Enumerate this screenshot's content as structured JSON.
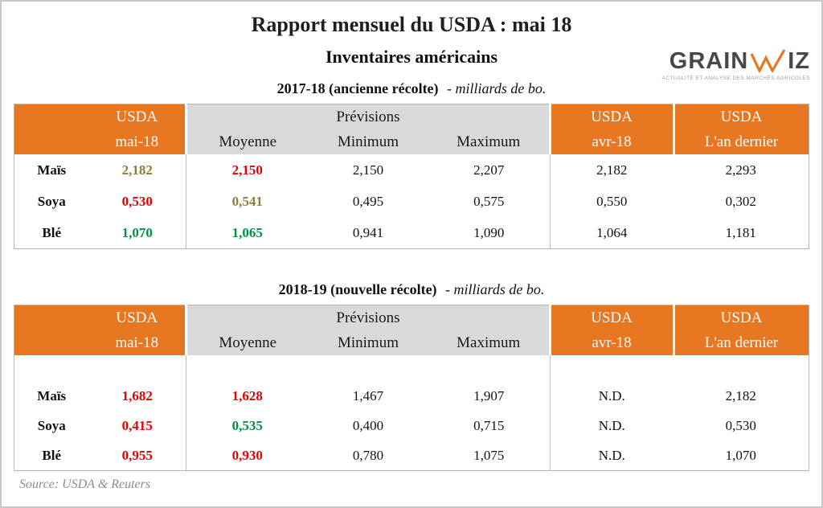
{
  "page": {
    "title": "Rapport mensuel du USDA : mai 18",
    "subtitle": "Inventaires américains",
    "source": "Source: USDA & Reuters"
  },
  "logo": {
    "wordmark_left": "GRAIN",
    "wordmark_right": "IZ",
    "w_icon": "orange-zigzag-w-icon",
    "tagline": "ACTUALITÉ ET ANALYSE DES MARCHÉS AGRICOLES",
    "accent": "#e87722"
  },
  "colors": {
    "header_orange": "#e87722",
    "header_gray": "#d9d9d9",
    "value_red": "#e60000",
    "value_green": "#009042",
    "value_olive": "#8b7d3a",
    "text": "#111111",
    "source_gray": "#8c8c8c"
  },
  "tables": [
    {
      "caption_bold": "2017-18 (ancienne récolte)",
      "caption_italic": "- milliards de bo.",
      "header": {
        "col1_top": "USDA",
        "col1_bottom": "mai-18",
        "group": "Prévisions",
        "moyenne": "Moyenne",
        "minimum": "Minimum",
        "maximum": "Maximum",
        "col5_top": "USDA",
        "col5_bottom": "avr-18",
        "col6_top": "USDA",
        "col6_bottom": "L'an dernier"
      },
      "spacer_row": false,
      "rows": [
        {
          "label": "Maïs",
          "values": [
            {
              "t": "2,182",
              "c": "#8b7d3a"
            },
            {
              "t": "2,150",
              "c": "#e60000"
            },
            {
              "t": "2,150"
            },
            {
              "t": "2,207"
            },
            {
              "t": "2,182"
            },
            {
              "t": "2,293"
            }
          ]
        },
        {
          "label": "Soya",
          "values": [
            {
              "t": "0,530",
              "c": "#e60000"
            },
            {
              "t": "0,541",
              "c": "#8b7d3a"
            },
            {
              "t": "0,495"
            },
            {
              "t": "0,575"
            },
            {
              "t": "0,550"
            },
            {
              "t": "0,302"
            }
          ]
        },
        {
          "label": "Blé",
          "values": [
            {
              "t": "1,070",
              "c": "#009042"
            },
            {
              "t": "1,065",
              "c": "#009042"
            },
            {
              "t": "0,941"
            },
            {
              "t": "1,090"
            },
            {
              "t": "1,064"
            },
            {
              "t": "1,181"
            }
          ]
        }
      ]
    },
    {
      "caption_bold": "2018-19 (nouvelle récolte)",
      "caption_italic": "- milliards de bo.",
      "header": {
        "col1_top": "USDA",
        "col1_bottom": "mai-18",
        "group": "Prévisions",
        "moyenne": "Moyenne",
        "minimum": "Minimum",
        "maximum": "Maximum",
        "col5_top": "USDA",
        "col5_bottom": "avr-18",
        "col6_top": "USDA",
        "col6_bottom": "L'an dernier"
      },
      "spacer_row": true,
      "rows": [
        {
          "label": "Maïs",
          "values": [
            {
              "t": "1,682",
              "c": "#e60000"
            },
            {
              "t": "1,628",
              "c": "#e60000"
            },
            {
              "t": "1,467"
            },
            {
              "t": "1,907"
            },
            {
              "t": "N.D."
            },
            {
              "t": "2,182"
            }
          ]
        },
        {
          "label": "Soya",
          "values": [
            {
              "t": "0,415",
              "c": "#e60000"
            },
            {
              "t": "0,535",
              "c": "#009042"
            },
            {
              "t": "0,400"
            },
            {
              "t": "0,715"
            },
            {
              "t": "N.D."
            },
            {
              "t": "0,530"
            }
          ]
        },
        {
          "label": "Blé",
          "values": [
            {
              "t": "0,955",
              "c": "#e60000"
            },
            {
              "t": "0,930",
              "c": "#e60000"
            },
            {
              "t": "0,780"
            },
            {
              "t": "1,075"
            },
            {
              "t": "N.D."
            },
            {
              "t": "1,070"
            }
          ]
        }
      ]
    }
  ]
}
